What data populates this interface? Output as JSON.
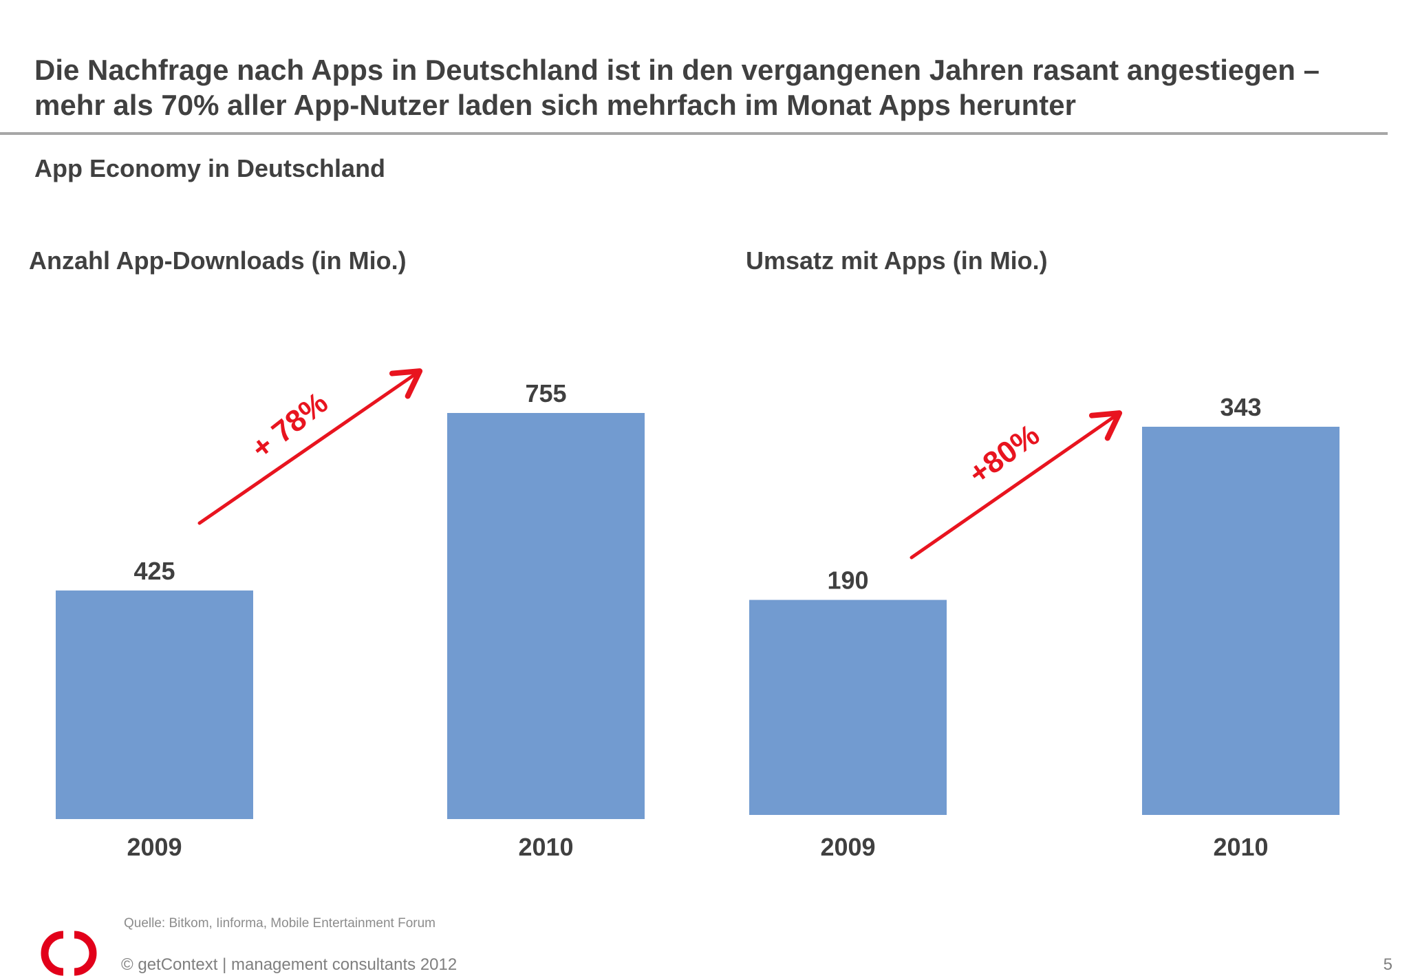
{
  "slide": {
    "headline_line1": "Die Nachfrage nach Apps in Deutschland ist in den vergangenen Jahren rasant angestiegen –",
    "headline_line2": "mehr als 70% aller App-Nutzer laden sich mehrfach im Monat Apps herunter",
    "subtitle": "App Economy in Deutschland",
    "source": "Quelle: Bitkom, Iinforma, Mobile Entertainment Forum",
    "copyright": "getContext | management consultants 2012",
    "copyright_symbol": "©",
    "page_number": "5",
    "logo_icon": "getcontext-logo-icon",
    "logo_color": "#e2001a"
  },
  "colors": {
    "bar": "#729bd0",
    "arrow": "#e8141f",
    "text": "#404040",
    "rule": "#a6a6a6"
  },
  "chart_data": [
    {
      "type": "bar",
      "title": "Anzahl App-Downloads (in Mio.)",
      "categories": [
        "2009",
        "2010"
      ],
      "values": [
        425,
        755
      ],
      "value_labels": [
        "425",
        "755"
      ],
      "annotation": "+ 78%",
      "ylim": [
        0,
        800
      ]
    },
    {
      "type": "bar",
      "title": "Umsatz mit Apps (in Mio.)",
      "categories": [
        "2009",
        "2010"
      ],
      "values": [
        190,
        343
      ],
      "value_labels": [
        "190",
        "343"
      ],
      "annotation": "+80%",
      "ylim": [
        0,
        363
      ]
    }
  ]
}
